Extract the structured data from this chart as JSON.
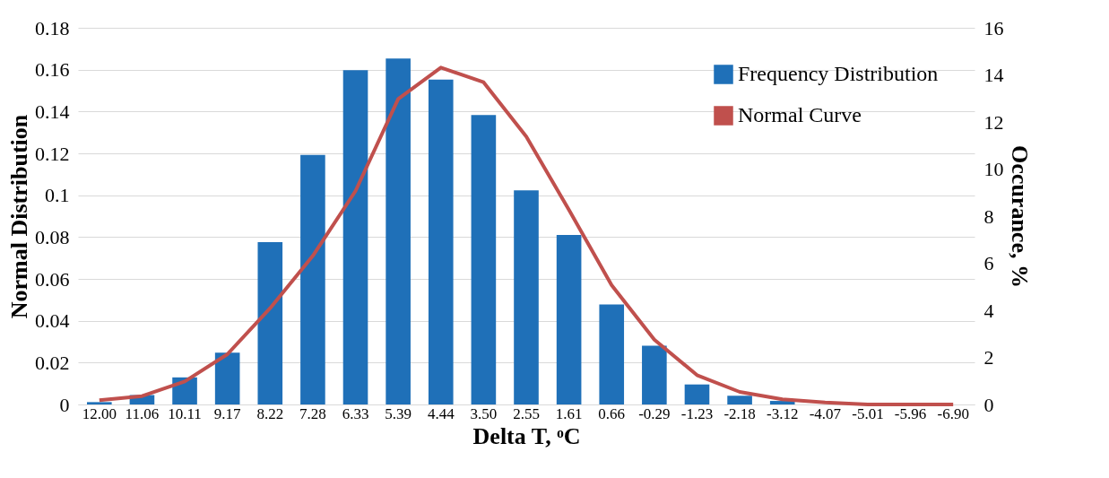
{
  "chart_data": {
    "type": "bar",
    "xlabel": "Delta T, ᵒC",
    "ylabel": "Normal Distribution",
    "y2label": "Occurance, %",
    "categories": [
      "12.00",
      "11.06",
      "10.11",
      "9.17",
      "8.22",
      "7.28",
      "6.33",
      "5.39",
      "4.44",
      "3.50",
      "2.55",
      "1.61",
      "0.66",
      "-0.29",
      "-1.23",
      "-2.18",
      "-3.12",
      "-4.07",
      "-5.01",
      "-5.96",
      "-6.90"
    ],
    "series": [
      {
        "name": "Frequency Distribution",
        "axis": "y2",
        "color": "#1f70b8",
        "values": [
          0.1,
          0.4,
          1.15,
          2.2,
          6.9,
          10.6,
          14.2,
          14.7,
          13.8,
          12.3,
          9.1,
          7.2,
          4.25,
          2.5,
          0.85,
          0.37,
          0.15,
          0,
          0,
          0,
          0
        ]
      },
      {
        "name": "Normal Curve",
        "type": "line",
        "color": "#c0504d",
        "values": [
          0.002,
          0.004,
          0.011,
          0.024,
          0.046,
          0.071,
          0.102,
          0.146,
          0.161,
          0.154,
          0.128,
          0.093,
          0.057,
          0.031,
          0.014,
          0.006,
          0.0025,
          0.001,
          0,
          0,
          0
        ]
      }
    ],
    "ylim": [
      0,
      0.18
    ],
    "yticks": [
      0,
      0.02,
      0.04,
      0.06,
      0.08,
      0.1,
      0.12,
      0.14,
      0.16,
      0.18
    ],
    "y2lim": [
      0,
      16
    ],
    "y2ticks": [
      0,
      2,
      4,
      6,
      8,
      10,
      12,
      14,
      16
    ],
    "grid": "y",
    "legend": "top right"
  }
}
